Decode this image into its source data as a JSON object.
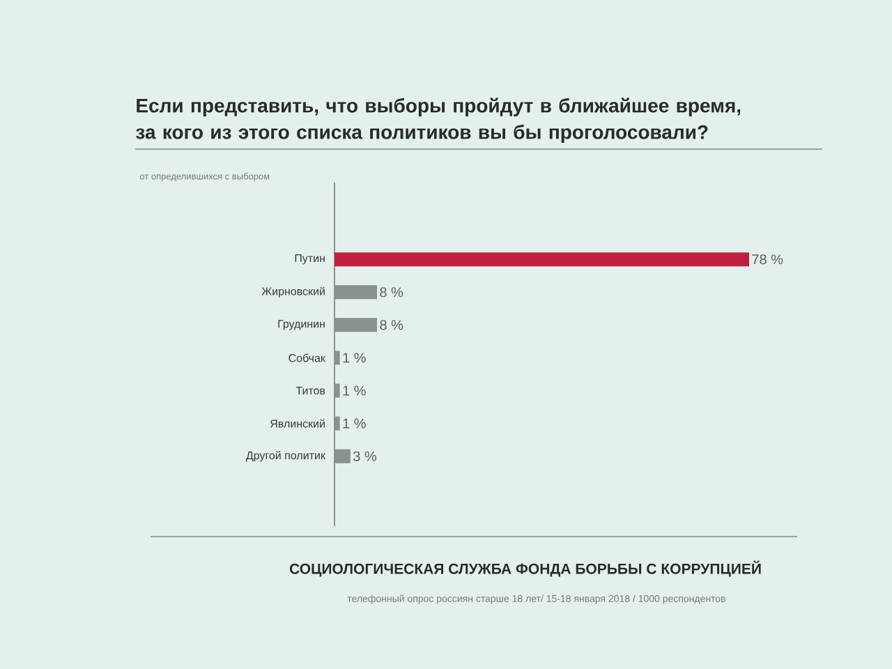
{
  "chart_data": {
    "type": "bar",
    "orientation": "horizontal",
    "title": "Если представить, что выборы пройдут в ближайшее время, за кого из этого списка политиков вы бы проголосовали?",
    "subtitle": "от определившихся с выбором",
    "categories": [
      "Путин",
      "Жирновский",
      "Грудинин",
      "Собчак",
      "Титов",
      "Явлинский",
      "Другой политик"
    ],
    "values": [
      78,
      8,
      8,
      1,
      1,
      1,
      3
    ],
    "colors": [
      "#c0203f",
      "#8a928f",
      "#8a928f",
      "#8a928f",
      "#8a928f",
      "#8a928f",
      "#8a928f"
    ],
    "value_labels": [
      "78 %",
      "8 %",
      "8 %",
      "1 %",
      "1 %",
      "1 %",
      "3 %"
    ],
    "annotations": [
      "СОЦИОЛОГИЧЕСКАЯ СЛУЖБА ФОНДА БОРЬБЫ С КОРРУПЦИЕЙ",
      "телефонный опрос россиян старше 18 лет/ 15-18 января 2018 / 1000 респондентов"
    ],
    "tick_labels": "y"
  }
}
